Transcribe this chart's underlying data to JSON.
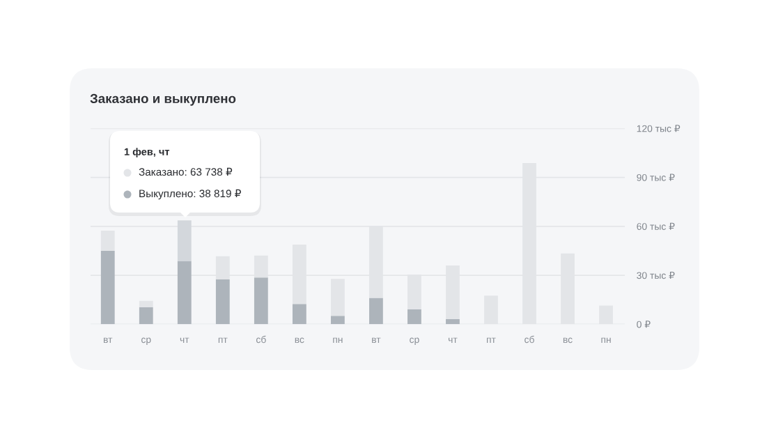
{
  "chart_data": {
    "type": "bar",
    "title": "Заказано и выкуплено",
    "stacked": true,
    "categories": [
      "вт",
      "ср",
      "чт",
      "пт",
      "сб",
      "вс",
      "пн",
      "вт",
      "ср",
      "чт",
      "пт",
      "сб",
      "вс",
      "пн"
    ],
    "series": [
      {
        "color": "#adb4bb",
        "values": [
          45.0,
          10.5,
          38.8,
          27.5,
          28.6,
          12.4,
          5.1,
          16.1,
          9.2,
          3.1,
          0,
          0,
          0,
          0
        ]
      },
      {
        "color": "#e3e5e8",
        "colors": [
          "#e3e5e8",
          "#e3e5e8",
          "#d3d7dc",
          "#e3e5e8",
          "#e3e5e8",
          "#e3e5e8",
          "#e3e5e8",
          "#e3e5e8",
          "#e3e5e8",
          "#e3e5e8",
          "#e3e5e8",
          "#e3e5e8",
          "#e3e5e8",
          "#e3e5e8"
        ],
        "values": [
          12.3,
          3.8,
          24.9,
          14.2,
          13.5,
          36.4,
          22.7,
          44.1,
          21.2,
          32.9,
          17.5,
          98.8,
          43.4,
          11.4
        ]
      }
    ],
    "ylim": [
      0,
      120
    ],
    "yticks": [
      {
        "value": 0,
        "label": "0 ₽"
      },
      {
        "value": 30,
        "label": "30 тыс ₽"
      },
      {
        "value": 60,
        "label": "60 тыс ₽"
      },
      {
        "value": 90,
        "label": "90 тыс ₽"
      },
      {
        "value": 120,
        "label": "120 тыс ₽"
      }
    ],
    "grid": "y",
    "annotations": [
      "1 фев, чт",
      "Заказано: 63 738 ₽",
      "Выкуплено: 38 819 ₽"
    ]
  }
}
